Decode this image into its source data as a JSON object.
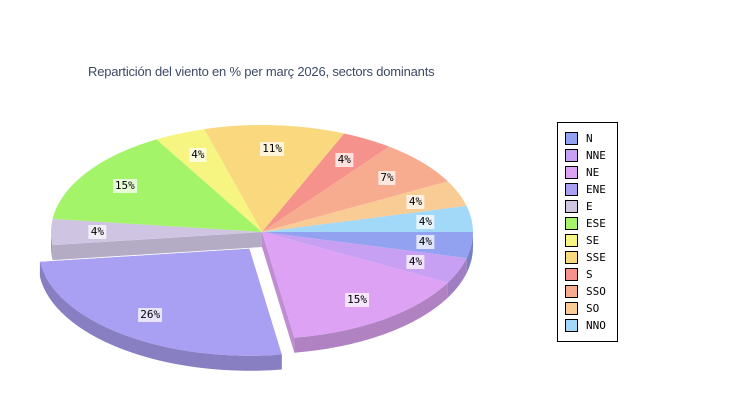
{
  "page": {
    "background": "#ffffff"
  },
  "chart_data": {
    "type": "pie",
    "style": "3d-exploded-pie",
    "title": "Repartición del viento en % per març 2026, sectors dominants",
    "title_color": "#3d4a66",
    "unit": "%",
    "legend_position": "right",
    "slice_order": "clockwise-from-east-axis",
    "label_text_color": "#000000",
    "label_background": "rgba(255,255,255,0.72)",
    "legend_border_color": "#000000",
    "slices": [
      {
        "label": "N",
        "value": 4,
        "display": "4%",
        "color": "#93a1f1"
      },
      {
        "label": "NNE",
        "value": 4,
        "display": "4%",
        "color": "#c79ff3"
      },
      {
        "label": "NE",
        "value": 15,
        "display": "15%",
        "color": "#dda2f3"
      },
      {
        "label": "ENE",
        "value": 26,
        "display": "26%",
        "color": "#a99ff3",
        "exploded": true
      },
      {
        "label": "E",
        "value": 4,
        "display": "4%",
        "color": "#cfc5e3"
      },
      {
        "label": "ESE",
        "value": 15,
        "display": "15%",
        "color": "#a3f469"
      },
      {
        "label": "SE",
        "value": 4,
        "display": "4%",
        "color": "#f6f582"
      },
      {
        "label": "SSE",
        "value": 11,
        "display": "11%",
        "color": "#fad87d"
      },
      {
        "label": "S",
        "value": 4,
        "display": "4%",
        "color": "#f5928c"
      },
      {
        "label": "SSO",
        "value": 7,
        "display": "7%",
        "color": "#f8ac8f"
      },
      {
        "label": "SO",
        "value": 4,
        "display": "4%",
        "color": "#f9cb95"
      },
      {
        "label": "NNO",
        "value": 4,
        "display": "4%",
        "color": "#a2d8f8"
      }
    ]
  }
}
